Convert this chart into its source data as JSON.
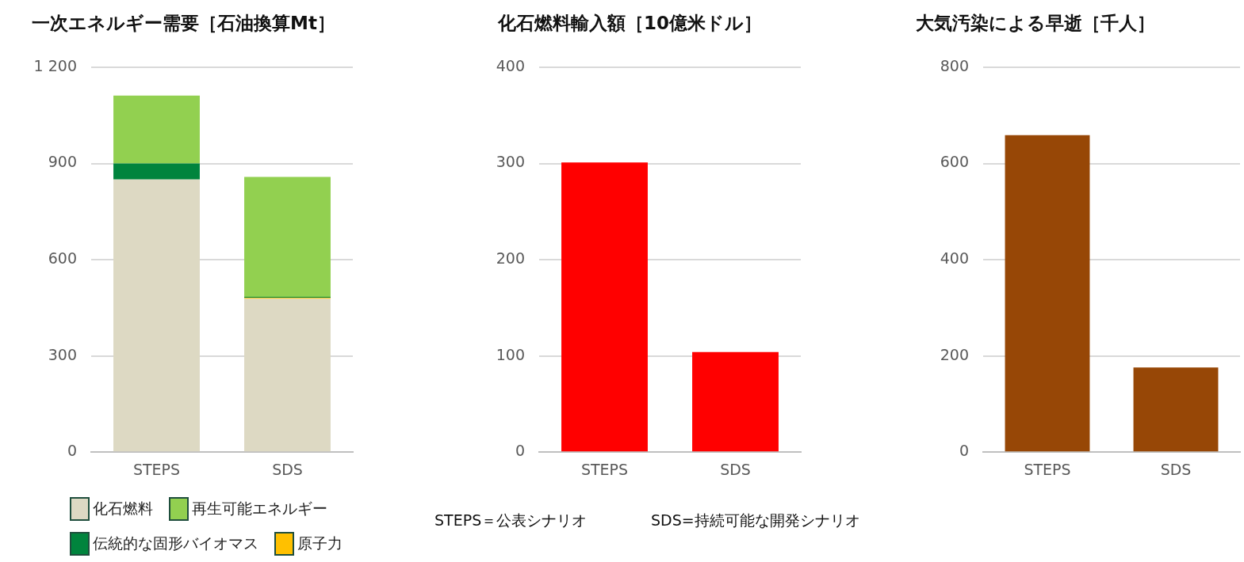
{
  "chart_data": [
    {
      "type": "bar",
      "title": "一次エネルギー需要［石油換算Mt］",
      "categories": [
        "STEPS",
        "SDS"
      ],
      "stacked": true,
      "legend": "bottom",
      "grid": "y",
      "ylim": [
        0,
        1200
      ],
      "yticks": [
        0,
        300,
        600,
        900,
        {
          "value": 1200,
          "label": "1 200"
        }
      ],
      "series": [
        {
          "name": "化石燃料",
          "color": "#ddd9c3",
          "values": [
            850,
            478
          ]
        },
        {
          "name": "原子力",
          "color": "#ffc000",
          "values": [
            0,
            3
          ]
        },
        {
          "name": "伝統的な固形バイオマス",
          "color": "#00843d",
          "values": [
            50,
            3
          ]
        },
        {
          "name": "再生可能エネルギー",
          "color": "#92d050",
          "values": [
            212,
            374
          ]
        }
      ]
    },
    {
      "type": "bar",
      "title": "化石燃料輸入額［10億米ドル］",
      "categories": [
        "STEPS",
        "SDS"
      ],
      "grid": "y",
      "ylim": [
        0,
        400
      ],
      "yticks": [
        0,
        100,
        200,
        300,
        400
      ],
      "values": [
        301,
        104
      ],
      "color": "#ff0000",
      "annotations": [
        "STEPS＝公表シナリオ",
        "SDS=持続可能な開発シナリオ"
      ]
    },
    {
      "type": "bar",
      "title": "大気汚染による早逝［千人］",
      "categories": [
        "STEPS",
        "SDS"
      ],
      "grid": "y",
      "ylim": [
        0,
        800
      ],
      "yticks": [
        0,
        200,
        400,
        600,
        800
      ],
      "values": [
        659,
        176
      ],
      "color": "#974706"
    }
  ]
}
